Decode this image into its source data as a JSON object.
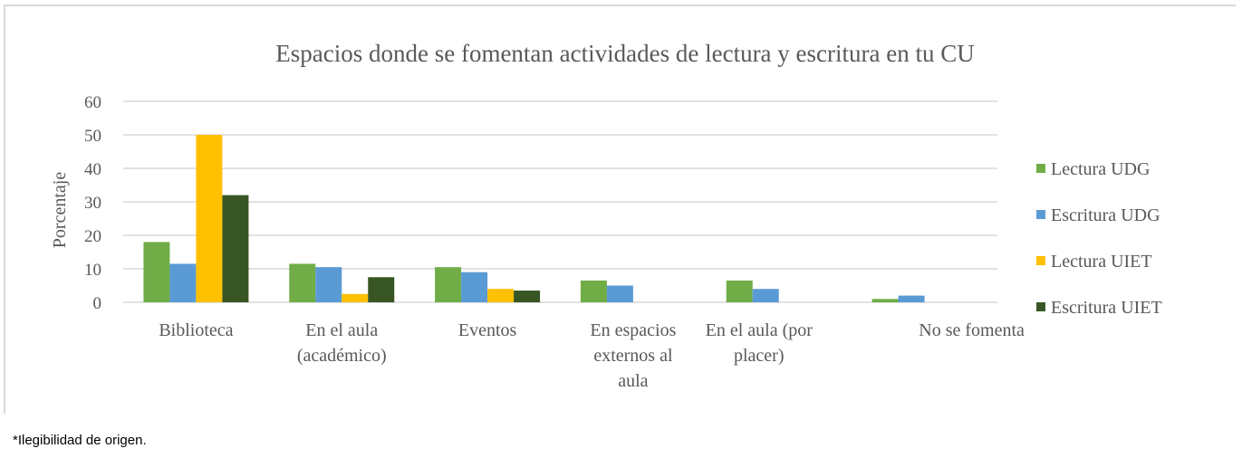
{
  "colors": {
    "lectura_udg": "#70ad47",
    "escritura_udg": "#5b9bd5",
    "lectura_uiet": "#ffc000",
    "escritura_uiet": "#375623",
    "grid": "#d9d9d9",
    "text": "#595959"
  },
  "chart_data": {
    "type": "bar",
    "title": "Espacios donde se fomentan actividades de lectura y escritura en tu CU",
    "xlabel": "",
    "ylabel": "Porcentaje",
    "ylim": [
      0,
      60
    ],
    "yticks": [
      "0",
      "10",
      "20",
      "30",
      "40",
      "50",
      "60"
    ],
    "grid": true,
    "legend_position": "right",
    "categories": [
      [
        "Biblioteca"
      ],
      [
        "En el aula",
        "(académico)"
      ],
      [
        "Eventos"
      ],
      [
        "En espacios",
        "externos al",
        "aula"
      ],
      [
        "En el aula (por",
        "placer)"
      ],
      [
        "No se fomenta"
      ]
    ],
    "series": [
      {
        "name": "Lectura UDG",
        "color_key": "lectura_udg",
        "values": [
          18,
          11.5,
          10.5,
          6.5,
          6.5,
          1
        ]
      },
      {
        "name": "Escritura UDG",
        "color_key": "escritura_udg",
        "values": [
          11.5,
          10.5,
          9,
          5,
          4,
          2
        ]
      },
      {
        "name": "Lectura UIET",
        "color_key": "lectura_uiet",
        "values": [
          50,
          2.5,
          4,
          0,
          0,
          0
        ]
      },
      {
        "name": "Escritura UIET",
        "color_key": "escritura_uiet",
        "values": [
          32,
          7.5,
          3.5,
          0,
          0,
          0
        ]
      }
    ]
  },
  "footnote": "*Ilegibilidad de origen."
}
